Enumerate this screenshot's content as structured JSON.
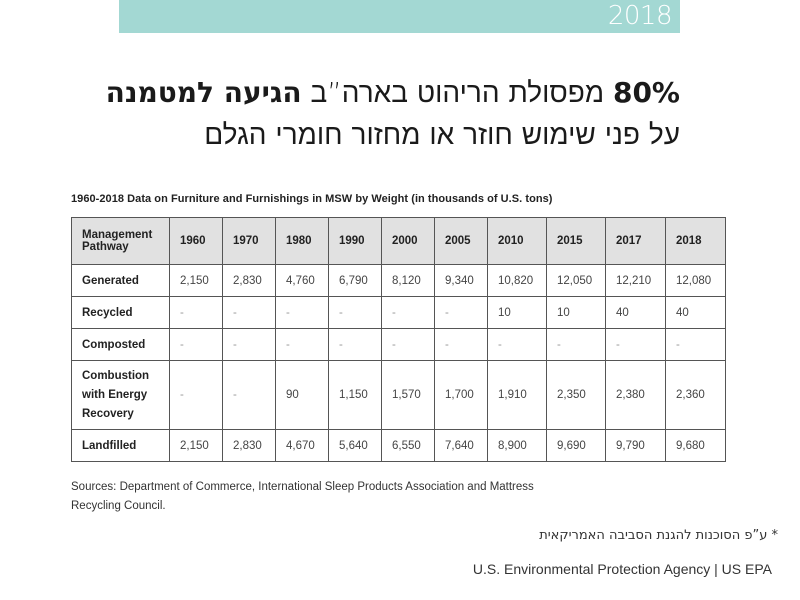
{
  "banner": {
    "year": "2018",
    "color": "#a3d8d3"
  },
  "headline": {
    "line1_bold_percent": "80%",
    "line1_text": " מפסולת הריהוט בארה”ב ",
    "line1_bold_end": "הגיעה למטמנה",
    "line2": "על פני שימוש חוזר או מחזור חומרי הגלם"
  },
  "table": {
    "title": "1960-2018 Data on Furniture and Furnishings in MSW by Weight (in thousands of U.S. tons)",
    "columns": [
      "Management Pathway",
      "1960",
      "1970",
      "1980",
      "1990",
      "2000",
      "2005",
      "2010",
      "2015",
      "2017",
      "2018"
    ],
    "rows": [
      {
        "label": "Generated",
        "values": [
          "2,150",
          "2,830",
          "4,760",
          "6,790",
          "8,120",
          "9,340",
          "10,820",
          "12,050",
          "12,210",
          "12,080"
        ]
      },
      {
        "label": "Recycled",
        "values": [
          "-",
          "-",
          "-",
          "-",
          "-",
          "-",
          "10",
          "10",
          "40",
          "40"
        ]
      },
      {
        "label": "Composted",
        "values": [
          "-",
          "-",
          "-",
          "-",
          "-",
          "-",
          "-",
          "-",
          "-",
          "-"
        ]
      },
      {
        "label": "Combustion with Energy Recovery",
        "values": [
          "-",
          "-",
          "90",
          "1,150",
          "1,570",
          "1,700",
          "1,910",
          "2,350",
          "2,380",
          "2,360"
        ]
      },
      {
        "label": "Landfilled",
        "values": [
          "2,150",
          "2,830",
          "4,670",
          "5,640",
          "6,550",
          "7,640",
          "8,900",
          "9,690",
          "9,790",
          "9,680"
        ]
      }
    ],
    "header_bg": "#e1e1e1"
  },
  "sources": "Sources: Department of Commerce, International Sleep Products Association and Mattress Recycling Council.",
  "footnote": "* ע”פ הסוכנות להגנת הסביבה האמריקאית",
  "agency": "U.S. Environmental Protection Agency | US EPA"
}
